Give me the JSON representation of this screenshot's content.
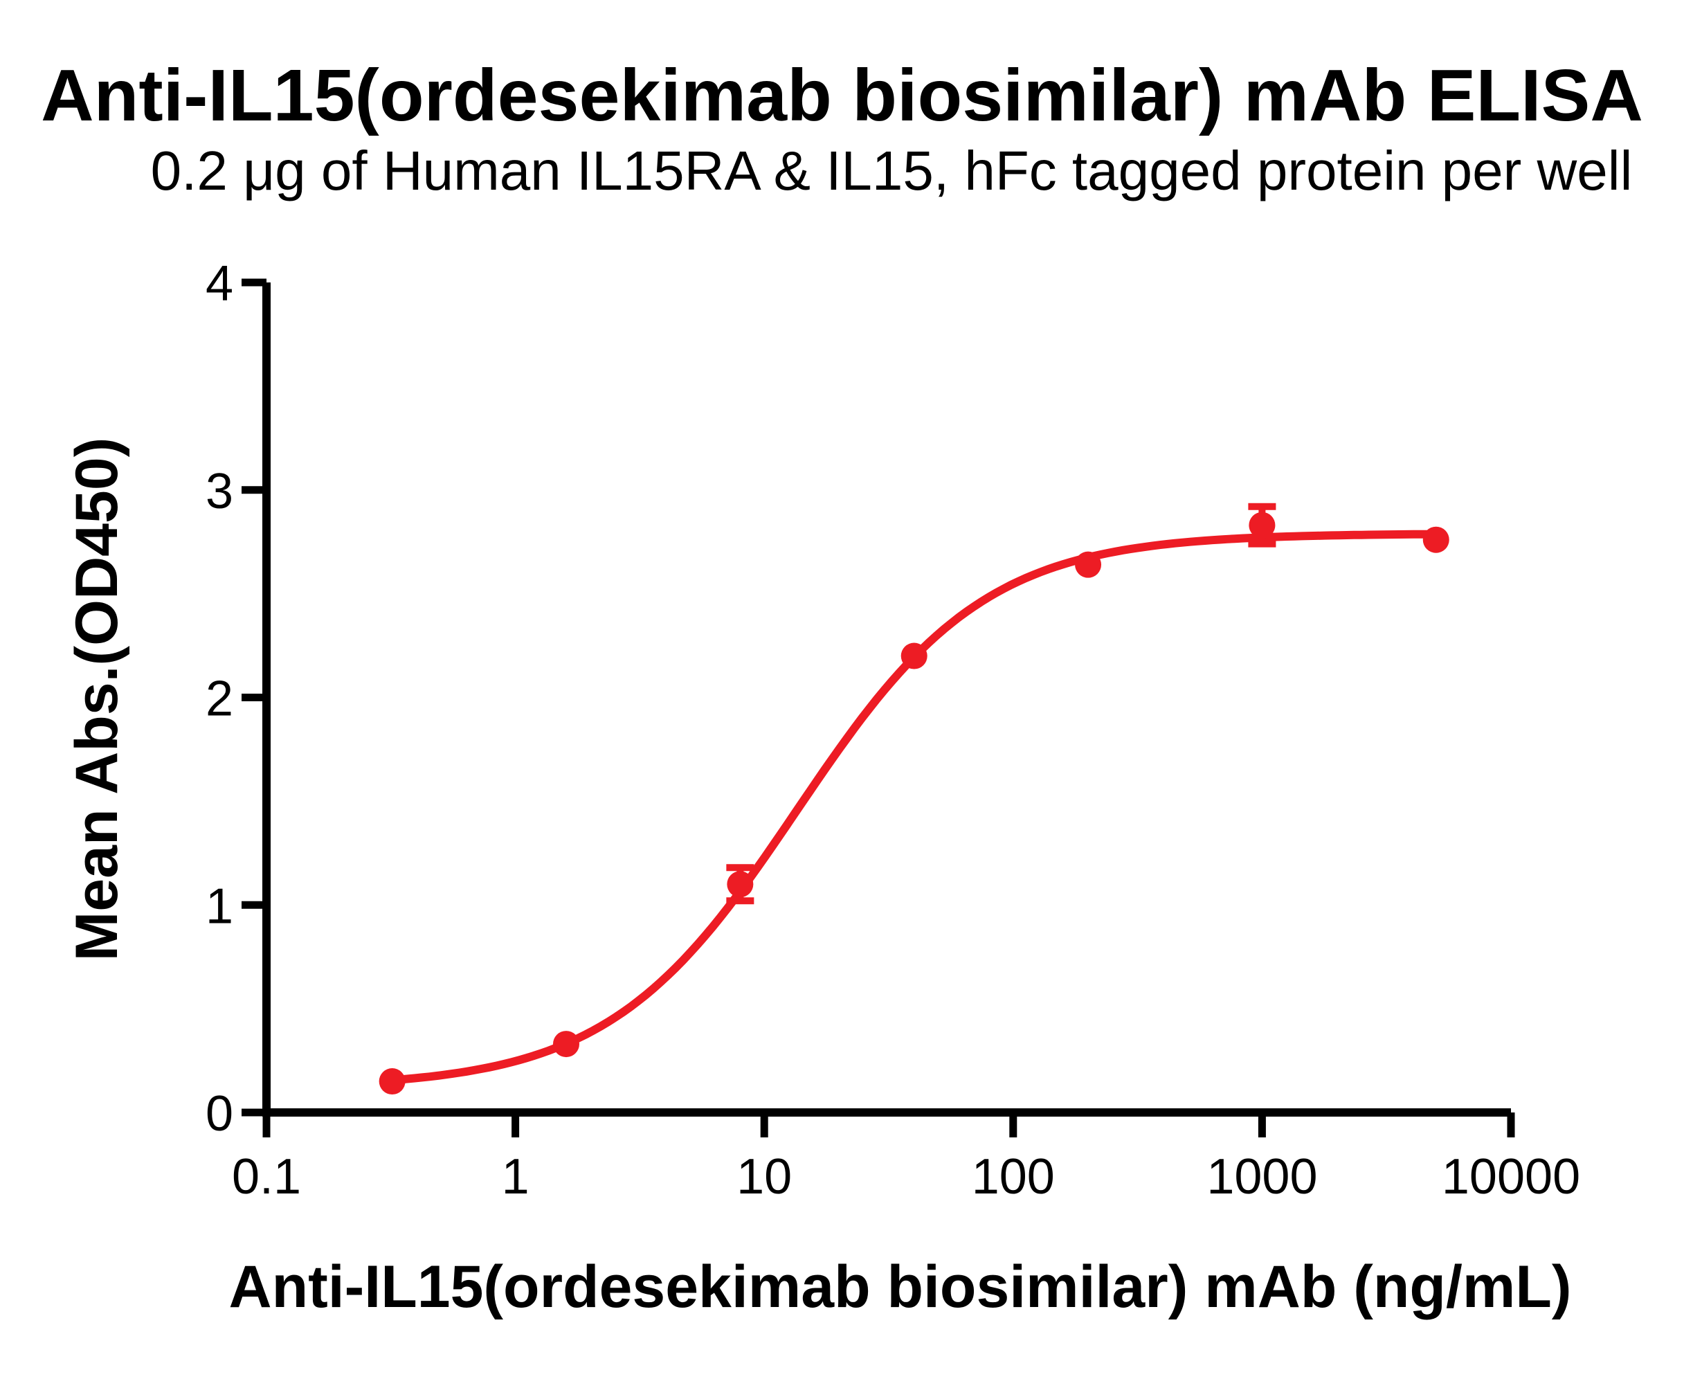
{
  "chart_data": {
    "type": "scatter",
    "title": "Anti-IL15(ordesekimab biosimilar) mAb ELISA",
    "subtitle": "0.2 μg of Human IL15RA & IL15, hFc tagged protein per well",
    "xlabel": "Anti-IL15(ordesekimab biosimilar) mAb (ng/mL)",
    "ylabel": "Mean Abs.(OD450)",
    "x_scale": "log10",
    "xlim": [
      0.1,
      10000
    ],
    "ylim": [
      0,
      4
    ],
    "x_ticks": [
      0.1,
      1,
      10,
      100,
      1000,
      10000
    ],
    "x_tick_labels": [
      "0.1",
      "1",
      "10",
      "100",
      "1000",
      "10000"
    ],
    "y_ticks": [
      0,
      1,
      2,
      3,
      4
    ],
    "y_tick_labels": [
      "0",
      "1",
      "2",
      "3",
      "4"
    ],
    "grid": false,
    "legend": null,
    "series": [
      {
        "name": "Anti-IL15(ordesekimab biosimilar) mAb",
        "marker": "circle",
        "points": [
          {
            "x": 0.32,
            "y": 0.15,
            "err": null
          },
          {
            "x": 1.6,
            "y": 0.33,
            "err": null
          },
          {
            "x": 8,
            "y": 1.1,
            "err": 0.08
          },
          {
            "x": 40,
            "y": 2.2,
            "err": null
          },
          {
            "x": 200,
            "y": 2.64,
            "err": null
          },
          {
            "x": 1000,
            "y": 2.83,
            "err": 0.09
          },
          {
            "x": 5000,
            "y": 2.76,
            "err": null
          }
        ],
        "fit_curve": {
          "model": "4PL",
          "bottom": 0.12,
          "top": 2.79,
          "ec50": 13.5,
          "hill": 1.15,
          "x_range": [
            0.32,
            5000
          ]
        }
      }
    ],
    "colors": {
      "series": "#ED1C24",
      "axis": "#000000",
      "text": "#000000",
      "background": "#FFFFFF"
    }
  }
}
